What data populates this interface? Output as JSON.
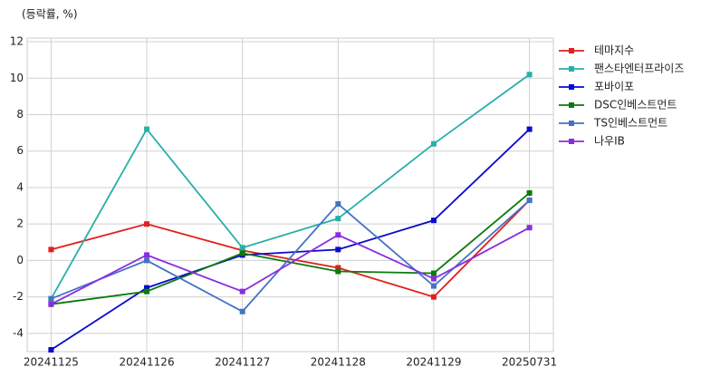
{
  "chart_data": {
    "type": "line",
    "title": "(등락률, %)",
    "categories": [
      "20241125",
      "20241126",
      "20241127",
      "20241128",
      "20241129",
      "20250731"
    ],
    "series": [
      {
        "name": "테마지수",
        "color": "#e0201c",
        "values": [
          0.6,
          2.0,
          0.55,
          -0.4,
          -2.0,
          3.3
        ]
      },
      {
        "name": "팬스타엔터프라이즈",
        "color": "#26b0a8",
        "values": [
          -2.1,
          7.2,
          0.7,
          2.3,
          6.4,
          10.2
        ]
      },
      {
        "name": "포바이포",
        "color": "#0a0ad0",
        "values": [
          -4.9,
          -1.5,
          0.3,
          0.6,
          2.2,
          7.2
        ]
      },
      {
        "name": "DSC인베스트먼트",
        "color": "#0a7a0a",
        "values": [
          -2.4,
          -1.7,
          0.4,
          -0.6,
          -0.7,
          3.7
        ]
      },
      {
        "name": "TS인베스트먼트",
        "color": "#4472c4",
        "values": [
          -2.1,
          0.0,
          -2.8,
          3.1,
          -1.4,
          3.3
        ]
      },
      {
        "name": "나우IB",
        "color": "#8a2be2",
        "values": [
          -2.4,
          0.3,
          -1.7,
          1.4,
          -1.0,
          1.8
        ]
      }
    ],
    "ylim": [
      -5,
      12.2
    ],
    "yticks": [
      -4,
      -2,
      0,
      2,
      4,
      6,
      8,
      10,
      12
    ],
    "grid": true,
    "legend": "right"
  }
}
